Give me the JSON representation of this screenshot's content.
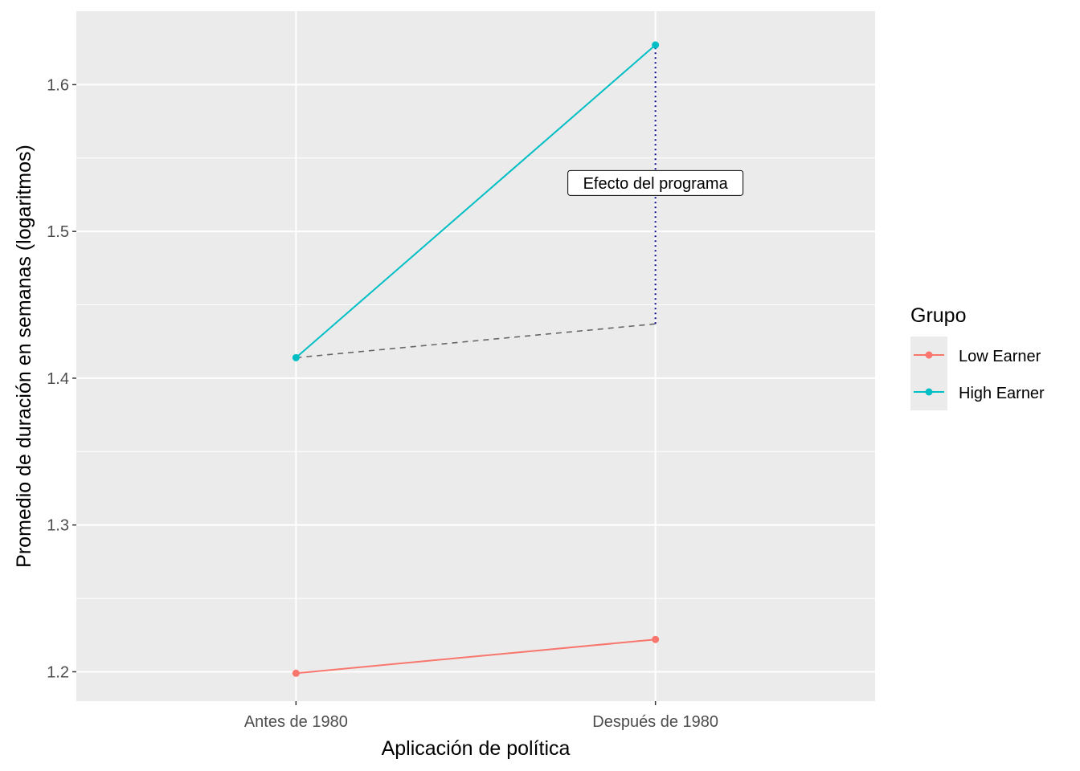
{
  "chart_data": {
    "type": "line",
    "title": "",
    "xlabel": "Aplicación de política",
    "ylabel": "Promedio de duración en semanas (logaritmos)",
    "categories": [
      "Antes de 1980",
      "Después de 1980"
    ],
    "ylim": [
      1.18,
      1.65
    ],
    "yticks": [
      1.2,
      1.3,
      1.4,
      1.5,
      1.6
    ],
    "ytick_labels": [
      "1.2",
      "1.3",
      "1.4",
      "1.5",
      "1.6"
    ],
    "grid": true,
    "series": [
      {
        "name": "Low Earner",
        "values": [
          1.199,
          1.222
        ],
        "color": "#F8766D"
      },
      {
        "name": "High Earner",
        "values": [
          1.414,
          1.627
        ],
        "color": "#00BFC4"
      }
    ],
    "counterfactual": {
      "values": [
        1.414,
        1.437
      ],
      "color": "#666666",
      "style": "dashed"
    },
    "effect_segment": {
      "category": "Después de 1980",
      "from": 1.437,
      "to": 1.627,
      "color": "#00008B",
      "style": "dotted"
    },
    "annotation": {
      "text": "Efecto del programa",
      "x": "Después de 1980",
      "y": 1.533
    },
    "legend": {
      "title": "Grupo",
      "position": "right"
    }
  }
}
